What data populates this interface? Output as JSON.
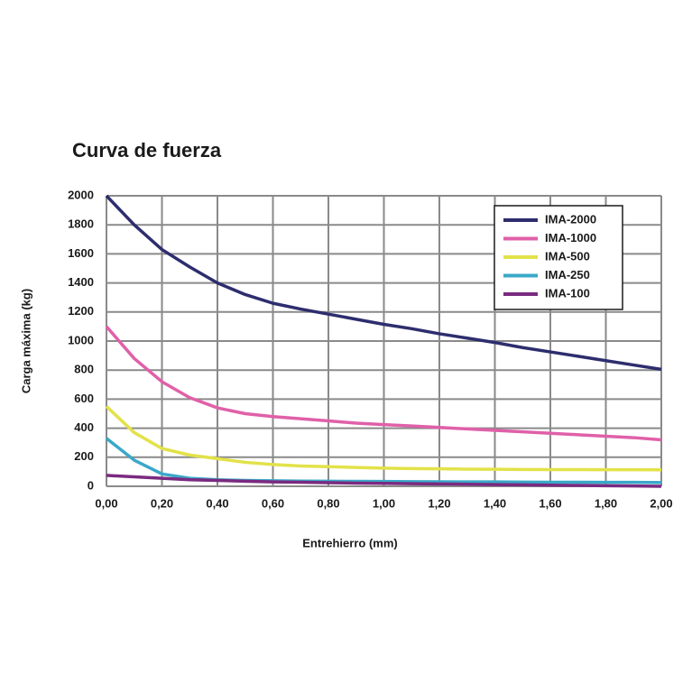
{
  "chart_data": {
    "type": "line",
    "title": "Curva de fuerza",
    "x_label": "Entrehierro (mm)",
    "y_label": "Carga máxima (kg)",
    "x": [
      0,
      0.1,
      0.2,
      0.3,
      0.4,
      0.5,
      0.6,
      0.7,
      0.8,
      0.9,
      1.0,
      1.1,
      1.2,
      1.3,
      1.4,
      1.5,
      1.6,
      1.7,
      1.8,
      1.9,
      2.0
    ],
    "series": [
      {
        "name": "IMA-2000",
        "color": "#2e2d6e",
        "values": [
          2000,
          1800,
          1630,
          1510,
          1400,
          1320,
          1260,
          1220,
          1185,
          1150,
          1115,
          1085,
          1050,
          1020,
          990,
          955,
          925,
          895,
          865,
          835,
          805
        ]
      },
      {
        "name": "IMA-1000",
        "color": "#e060a8",
        "values": [
          1100,
          880,
          720,
          610,
          540,
          500,
          480,
          465,
          450,
          435,
          425,
          415,
          405,
          395,
          385,
          375,
          365,
          355,
          345,
          335,
          320
        ]
      },
      {
        "name": "IMA-500",
        "color": "#e2e24a",
        "values": [
          550,
          370,
          260,
          215,
          190,
          165,
          150,
          140,
          135,
          130,
          125,
          122,
          120,
          118,
          117,
          116,
          115,
          115,
          114,
          114,
          113
        ]
      },
      {
        "name": "IMA-250",
        "color": "#3aa8c8",
        "values": [
          330,
          180,
          85,
          55,
          45,
          40,
          38,
          36,
          35,
          34,
          33,
          32,
          31,
          30,
          30,
          29,
          28,
          28,
          27,
          27,
          26
        ]
      },
      {
        "name": "IMA-100",
        "color": "#7a2a80",
        "values": [
          75,
          65,
          55,
          45,
          40,
          35,
          30,
          28,
          25,
          22,
          20,
          18,
          16,
          14,
          12,
          10,
          8,
          6,
          4,
          2,
          0
        ]
      }
    ],
    "xlim": [
      0,
      2.0
    ],
    "xticks": [
      {
        "value": 0,
        "label": "0,00"
      },
      {
        "value": 0.2,
        "label": "0,20"
      },
      {
        "value": 0.4,
        "label": "0,40"
      },
      {
        "value": 0.6,
        "label": "0,60"
      },
      {
        "value": 0.8,
        "label": "0,80"
      },
      {
        "value": 1.0,
        "label": "1,00"
      },
      {
        "value": 1.2,
        "label": "1,20"
      },
      {
        "value": 1.4,
        "label": "1,40"
      },
      {
        "value": 1.6,
        "label": "1,60"
      },
      {
        "value": 1.8,
        "label": "1,80"
      },
      {
        "value": 2.0,
        "label": "2,00"
      }
    ],
    "ylim": [
      0,
      2000
    ],
    "yticks": [
      0,
      200,
      400,
      600,
      800,
      1000,
      1200,
      1400,
      1600,
      1800,
      2000
    ],
    "grid": true,
    "legend": "upper right"
  }
}
